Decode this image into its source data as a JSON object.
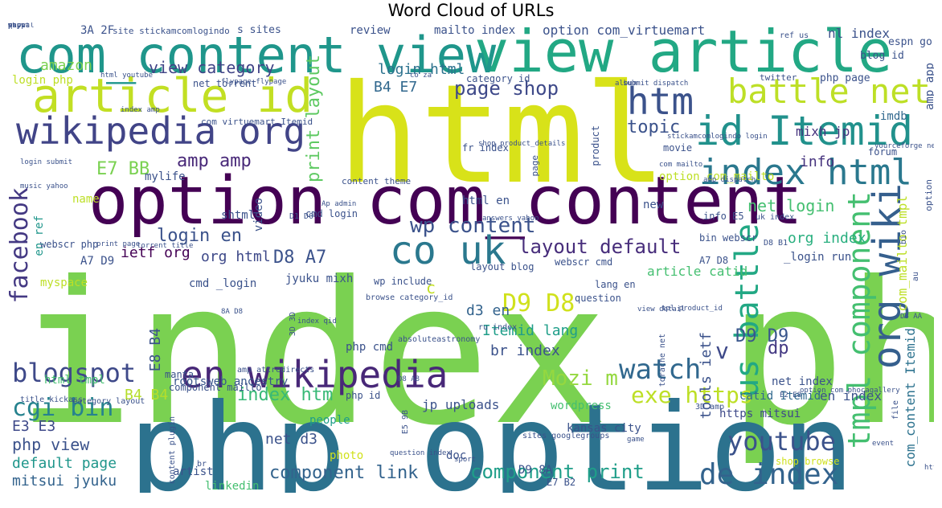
{
  "chart_data": {
    "type": "wordcloud",
    "title": "Word Cloud of URLs",
    "words": [
      {
        "text": "index php",
        "weight": 1.0,
        "color": "#7ad151"
      },
      {
        "text": "html",
        "weight": 0.9,
        "color": "#d8e219"
      },
      {
        "text": "php option",
        "weight": 0.78,
        "color": "#2c728e"
      },
      {
        "text": "option com_content",
        "weight": 0.52,
        "color": "#440154"
      },
      {
        "text": "view article",
        "weight": 0.5,
        "color": "#22a884"
      },
      {
        "text": "com_content view",
        "weight": 0.46,
        "color": "#1f968b"
      },
      {
        "text": "article id",
        "weight": 0.38,
        "color": "#c2df23"
      },
      {
        "text": "wikipedia org",
        "weight": 0.33,
        "color": "#414487"
      },
      {
        "text": "id Itemid",
        "weight": 0.34,
        "color": "#21918c"
      },
      {
        "text": "index html",
        "weight": 0.3,
        "color": "#2a788e"
      },
      {
        "text": "en wikipedia",
        "weight": 0.3,
        "color": "#482878"
      },
      {
        "text": "org wiki",
        "weight": 0.3,
        "color": "#355f8d"
      },
      {
        "text": "htm",
        "weight": 0.3,
        "color": "#3b528b"
      },
      {
        "text": "battle net",
        "weight": 0.27,
        "color": "#bddf26"
      },
      {
        "text": "co uk",
        "weight": 0.27,
        "color": "#2a788e"
      },
      {
        "text": "us battle",
        "weight": 0.24,
        "color": "#22a884"
      },
      {
        "text": "tmpl component",
        "weight": 0.24,
        "color": "#44bf70"
      },
      {
        "text": "de index",
        "weight": 0.22,
        "color": "#33638d"
      },
      {
        "text": "blogspot",
        "weight": 0.2,
        "color": "#3e4989"
      },
      {
        "text": "watch",
        "weight": 0.2,
        "color": "#31688e"
      },
      {
        "text": "cgi bin",
        "weight": 0.18,
        "color": "#26828e"
      },
      {
        "text": "youtube",
        "weight": 0.18,
        "color": "#3b528b"
      },
      {
        "text": "facebook",
        "weight": 0.17,
        "color": "#443983"
      },
      {
        "text": "print layout",
        "weight": 0.16,
        "color": "#5ec962"
      },
      {
        "text": "D9 D8",
        "weight": 0.18,
        "color": "#d0e11c"
      },
      {
        "text": "exe https",
        "weight": 0.17,
        "color": "#bddf26"
      },
      {
        "text": "Mozi m",
        "weight": 0.16,
        "color": "#95d840"
      },
      {
        "text": "wp content",
        "weight": 0.15,
        "color": "#3b528b"
      },
      {
        "text": "layout default",
        "weight": 0.15,
        "color": "#472d7b"
      },
      {
        "text": "component print",
        "weight": 0.15,
        "color": "#1f9e89"
      },
      {
        "text": "page shop",
        "weight": 0.14,
        "color": "#3e4989"
      },
      {
        "text": "com_content Itemid",
        "weight": 0.1,
        "color": "#2c728e"
      },
      {
        "text": "com_mailto tmpl",
        "weight": 0.1,
        "color": "#bddf26"
      },
      {
        "text": "amp amp",
        "weight": 0.12,
        "color": "#482878"
      },
      {
        "text": "E7 BB",
        "weight": 0.12,
        "color": "#7ad151"
      },
      {
        "text": "login en",
        "weight": 0.12,
        "color": "#3b528b"
      },
      {
        "text": "D8 A7",
        "weight": 0.12,
        "color": "#3b528b"
      },
      {
        "text": "index htm",
        "weight": 0.12,
        "color": "#38b977"
      },
      {
        "text": "D9 D9",
        "weight": 0.12,
        "color": "#39568c"
      },
      {
        "text": "component link",
        "weight": 0.12,
        "color": "#33638d"
      },
      {
        "text": "php view",
        "weight": 0.11,
        "color": "#3b528b"
      },
      {
        "text": "default page",
        "weight": 0.1,
        "color": "#1f968b"
      },
      {
        "text": "mitsui jyuku",
        "weight": 0.1,
        "color": "#33638d"
      },
      {
        "text": "E3 E3",
        "weight": 0.1,
        "color": "#3e4989"
      },
      {
        "text": "topic",
        "weight": 0.11,
        "color": "#3b528b"
      },
      {
        "text": "view category",
        "weight": 0.1,
        "color": "#414487"
      },
      {
        "text": "login html",
        "weight": 0.1,
        "color": "#2c728e"
      },
      {
        "text": "B4 E7",
        "weight": 0.1,
        "color": "#31688e"
      },
      {
        "text": "amazon",
        "weight": 0.1,
        "color": "#7ad151"
      },
      {
        "text": "net login",
        "weight": 0.1,
        "color": "#44bf70"
      },
      {
        "text": "org index",
        "weight": 0.1,
        "color": "#29af7f"
      },
      {
        "text": "info",
        "weight": 0.1,
        "color": "#46337e"
      },
      {
        "text": "imdb",
        "weight": 0.09,
        "color": "#31688e"
      },
      {
        "text": "mixh jp",
        "weight": 0.09,
        "color": "#46337e"
      },
      {
        "text": "nl index",
        "weight": 0.09,
        "color": "#3b528b"
      },
      {
        "text": "option com_virtuemart",
        "weight": 0.08,
        "color": "#3b528b"
      },
      {
        "text": "Itemid lang",
        "weight": 0.09,
        "color": "#1f9e89"
      },
      {
        "text": "br index",
        "weight": 0.09,
        "color": "#3b528b"
      },
      {
        "text": "d3 en",
        "weight": 0.09,
        "color": "#33638d"
      },
      {
        "text": "ietf org",
        "weight": 0.09,
        "color": "#440154"
      },
      {
        "text": "org html",
        "weight": 0.08,
        "color": "#3e4989"
      },
      {
        "text": "net d3",
        "weight": 0.09,
        "color": "#3b528b"
      },
      {
        "text": "B4 B4",
        "weight": 0.09,
        "color": "#b5de2b"
      },
      {
        "text": "E8 B4",
        "weight": 0.08,
        "color": "#3b528b"
      },
      {
        "text": "html tmpl",
        "weight": 0.07,
        "color": "#44bf70"
      },
      {
        "text": "rootsweb ancestry",
        "weight": 0.07,
        "color": "#39568c"
      },
      {
        "text": "jp uploads",
        "weight": 0.08,
        "color": "#3b528b"
      },
      {
        "text": "tools ietf",
        "weight": 0.08,
        "color": "#3b528b"
      },
      {
        "text": "net index",
        "weight": 0.07,
        "color": "#3b528b"
      },
      {
        "text": "en index",
        "weight": 0.08,
        "color": "#3b528b"
      },
      {
        "text": "catid Itemid",
        "weight": 0.07,
        "color": "#31688e"
      },
      {
        "text": "https mitsui",
        "weight": 0.07,
        "color": "#3e4989"
      },
      {
        "text": "dp",
        "weight": 0.09,
        "color": "#443983"
      },
      {
        "text": "v",
        "weight": 0.12,
        "color": "#3e4989"
      },
      {
        "text": "c",
        "weight": 0.1,
        "color": "#c2df23"
      },
      {
        "text": "A7 D9",
        "weight": 0.07,
        "color": "#3b528b"
      },
      {
        "text": "cmd _login",
        "weight": 0.07,
        "color": "#3b528b"
      },
      {
        "text": "name",
        "weight": 0.07,
        "color": "#bddf26"
      },
      {
        "text": "en ref",
        "weight": 0.07,
        "color": "#1f968b"
      },
      {
        "text": "myspace",
        "weight": 0.07,
        "color": "#bddf26"
      },
      {
        "text": "video",
        "weight": 0.07,
        "color": "#3b528b"
      },
      {
        "text": "shtml",
        "weight": 0.06,
        "color": "#3b528b"
      },
      {
        "text": "mylife",
        "weight": 0.06,
        "color": "#3b528b"
      },
      {
        "text": "jyuku mixh",
        "weight": 0.07,
        "color": "#3b528b"
      },
      {
        "text": "php cmd",
        "weight": 0.07,
        "color": "#3b528b"
      },
      {
        "text": "article catid",
        "weight": 0.07,
        "color": "#44bf70"
      },
      {
        "text": "layout blog",
        "weight": 0.06,
        "color": "#3b528b"
      },
      {
        "text": "webscr cmd",
        "weight": 0.06,
        "color": "#3b528b"
      },
      {
        "text": "lang en",
        "weight": 0.06,
        "color": "#3b528b"
      },
      {
        "text": "_login run",
        "weight": 0.07,
        "color": "#3b528b"
      },
      {
        "text": "A7 D8",
        "weight": 0.06,
        "color": "#3b528b"
      },
      {
        "text": "html en",
        "weight": 0.07,
        "color": "#3b528b"
      },
      {
        "text": "wp include",
        "weight": 0.06,
        "color": "#3b528b"
      },
      {
        "text": "webscr php",
        "weight": 0.06,
        "color": "#3b528b"
      },
      {
        "text": "new",
        "weight": 0.07,
        "color": "#3b528b"
      },
      {
        "text": "bin webscr",
        "weight": 0.06,
        "color": "#3b528b"
      },
      {
        "text": "info E5",
        "weight": 0.06,
        "color": "#3b528b"
      },
      {
        "text": "option com_mailto",
        "weight": 0.06,
        "color": "#bddf26"
      },
      {
        "text": "people",
        "weight": 0.06,
        "color": "#1f9e89"
      },
      {
        "text": "photo",
        "weight": 0.06,
        "color": "#d0e11c"
      },
      {
        "text": "artist",
        "weight": 0.06,
        "color": "#3b528b"
      },
      {
        "text": "doc",
        "weight": 0.06,
        "color": "#3b528b"
      },
      {
        "text": "linkedin",
        "weight": 0.06,
        "color": "#44bf70"
      },
      {
        "text": "kansas city",
        "weight": 0.06,
        "color": "#3b528b"
      },
      {
        "text": "wordpress",
        "weight": 0.06,
        "color": "#44bf70"
      },
      {
        "text": "D9 8A",
        "weight": 0.06,
        "color": "#3b528b"
      },
      {
        "text": "E7 B2",
        "weight": 0.05,
        "color": "#3b528b"
      },
      {
        "text": "shop browse",
        "weight": 0.05,
        "color": "#d0e11c"
      },
      {
        "text": "review",
        "weight": 0.06,
        "color": "#3b528b"
      },
      {
        "text": "mailto index",
        "weight": 0.06,
        "color": "#3b528b"
      },
      {
        "text": "3A 2F",
        "weight": 0.06,
        "color": "#3b528b"
      },
      {
        "text": "site stickamcomlogindo",
        "weight": 0.04,
        "color": "#3b528b"
      },
      {
        "text": "s sites",
        "weight": 0.05,
        "color": "#3b528b"
      },
      {
        "text": "login php",
        "weight": 0.06,
        "color": "#bddf26"
      },
      {
        "text": "net torrent",
        "weight": 0.05,
        "color": "#3b528b"
      },
      {
        "text": "blog id",
        "weight": 0.05,
        "color": "#3b528b"
      },
      {
        "text": "espn go",
        "weight": 0.05,
        "color": "#3b528b"
      },
      {
        "text": "amp app",
        "weight": 0.05,
        "color": "#3b528b"
      },
      {
        "text": "php page",
        "weight": 0.05,
        "color": "#3b528b"
      },
      {
        "text": "twitter",
        "weight": 0.04,
        "color": "#3b528b"
      },
      {
        "text": "movie",
        "weight": 0.05,
        "color": "#3b528b"
      },
      {
        "text": "fr index",
        "weight": 0.05,
        "color": "#3b528b"
      },
      {
        "text": "product",
        "weight": 0.05,
        "color": "#3b528b"
      },
      {
        "text": "category id",
        "weight": 0.05,
        "color": "#3b528b"
      },
      {
        "text": "com virtuemart Itemid",
        "weight": 0.04,
        "color": "#3b528b"
      },
      {
        "text": "content theme",
        "weight": 0.04,
        "color": "#3b528b"
      },
      {
        "text": "page",
        "weight": 0.06,
        "color": "#3b528b"
      },
      {
        "text": "option",
        "weight": 0.06,
        "color": "#3b528b"
      },
      {
        "text": "uk index",
        "weight": 0.04,
        "color": "#3b528b"
      },
      {
        "text": "D8 B1",
        "weight": 0.04,
        "color": "#3b528b"
      },
      {
        "text": "browse category_id",
        "weight": 0.04,
        "color": "#3b528b"
      },
      {
        "text": "question",
        "weight": 0.04,
        "color": "#3b528b"
      },
      {
        "text": "3D 3D",
        "weight": 0.04,
        "color": "#3b528b"
      },
      {
        "text": "amp attredirects",
        "weight": 0.04,
        "color": "#3b528b"
      },
      {
        "text": "absoluteastronomy",
        "weight": 0.04,
        "color": "#3b528b"
      },
      {
        "text": "ru index",
        "weight": 0.04,
        "color": "#3b528b"
      },
      {
        "text": "manta",
        "weight": 0.05,
        "color": "#3b528b"
      },
      {
        "text": "component mailto",
        "weight": 0.04,
        "color": "#3b528b"
      },
      {
        "text": "sites googlegroups",
        "weight": 0.04,
        "color": "#3b528b"
      },
      {
        "text": "3D amp",
        "weight": 0.04,
        "color": "#3b528b"
      },
      {
        "text": "torache net",
        "weight": 0.04,
        "color": "#3b528b"
      },
      {
        "text": "file",
        "weight": 0.04,
        "color": "#3b528b"
      },
      {
        "text": "cmd login",
        "weight": 0.05,
        "color": "#3b528b"
      },
      {
        "text": "D1 D0",
        "weight": 0.05,
        "color": "#3b528b"
      },
      {
        "text": "php id",
        "weight": 0.04,
        "color": "#3b528b"
      },
      {
        "text": "title kickass",
        "weight": 0.04,
        "color": "#3b528b"
      },
      {
        "text": "category layout",
        "weight": 0.04,
        "color": "#3b528b"
      },
      {
        "text": "content plugin",
        "weight": 0.04,
        "color": "#3b528b"
      },
      {
        "text": "br",
        "weight": 0.05,
        "color": "#3b528b"
      },
      {
        "text": "bio",
        "weight": 0.04,
        "color": "#3b528b"
      },
      {
        "text": "au",
        "weight": 0.05,
        "color": "#3b528b"
      },
      {
        "text": "E5 9B",
        "weight": 0.04,
        "color": "#3b528b"
      },
      {
        "text": "ref us",
        "weight": 0.04,
        "color": "#3b528b"
      },
      {
        "text": "html youtube",
        "weight": 0.03,
        "color": "#3b528b"
      },
      {
        "text": "flypage flypage",
        "weight": 0.04,
        "color": "#3b528b"
      },
      {
        "text": "stickamcomlogindo login",
        "weight": 0.03,
        "color": "#3b528b"
      },
      {
        "text": "shop product_details",
        "weight": 0.03,
        "color": "#3b528b"
      },
      {
        "text": "com mailto",
        "weight": 0.04,
        "color": "#3b528b"
      },
      {
        "text": "login submit",
        "weight": 0.03,
        "color": "#3b528b"
      },
      {
        "text": "music yahoo",
        "weight": 0.03,
        "color": "#3b528b"
      },
      {
        "text": "Ap admin",
        "weight": 0.03,
        "color": "#3b528b"
      },
      {
        "text": "torrent title",
        "weight": 0.03,
        "color": "#3b528b"
      },
      {
        "text": "print page",
        "weight": 0.03,
        "color": "#3b528b"
      },
      {
        "text": "answers yahoo",
        "weight": 0.03,
        "color": "#3b528b"
      },
      {
        "text": "amp dispatch",
        "weight": 0.03,
        "color": "#3b528b"
      },
      {
        "text": "question index",
        "weight": 0.03,
        "color": "#3b528b"
      },
      {
        "text": "option com_phocagallery",
        "weight": 0.03,
        "color": "#3b528b"
      },
      {
        "text": "tpl product_id",
        "weight": 0.03,
        "color": "#3b528b"
      },
      {
        "text": "view detail",
        "weight": 0.03,
        "color": "#3b528b"
      },
      {
        "text": "yourceforge net",
        "weight": 0.03,
        "color": "#3b528b"
      },
      {
        "text": "submit dispatch",
        "weight": 0.03,
        "color": "#3b528b"
      },
      {
        "text": "index qid",
        "weight": 0.03,
        "color": "#3b528b"
      },
      {
        "text": "8A D8",
        "weight": 0.04,
        "color": "#3b528b"
      },
      {
        "text": "D8 AA",
        "weight": 0.03,
        "color": "#3b528b"
      },
      {
        "text": "D8 A8",
        "weight": 0.03,
        "color": "#3b528b"
      },
      {
        "text": "E2 E8",
        "weight": 0.03,
        "color": "#3b528b"
      },
      {
        "text": "index amp",
        "weight": 0.03,
        "color": "#3b528b"
      },
      {
        "text": "sport",
        "weight": 0.03,
        "color": "#3b528b"
      },
      {
        "text": "game",
        "weight": 0.03,
        "color": "#3b528b"
      },
      {
        "text": "event",
        "weight": 0.03,
        "color": "#3b528b"
      },
      {
        "text": "https apbfiber",
        "weight": 0.03,
        "color": "#3b528b"
      },
      {
        "text": "forum",
        "weight": 0.03,
        "color": "#3b528b"
      },
      {
        "text": "co za",
        "weight": 0.03,
        "color": "#3b528b"
      },
      {
        "text": "album",
        "weight": 0.03,
        "color": "#3b528b"
      },
      {
        "text": "wn",
        "weight": 0.03,
        "color": "#3b528b"
      },
      {
        "text": "pipi",
        "weight": 0.03,
        "color": "#3b528b"
      },
      {
        "text": "show",
        "weight": 0.03,
        "color": "#3b528b"
      },
      {
        "text": "q",
        "weight": 0.05,
        "color": "#3b528b"
      },
      {
        "text": "paypal",
        "weight": 0.03,
        "color": "#3b528b"
      },
      {
        "text": "php t",
        "weight": 0.03,
        "color": "#3b528b"
      }
    ]
  }
}
